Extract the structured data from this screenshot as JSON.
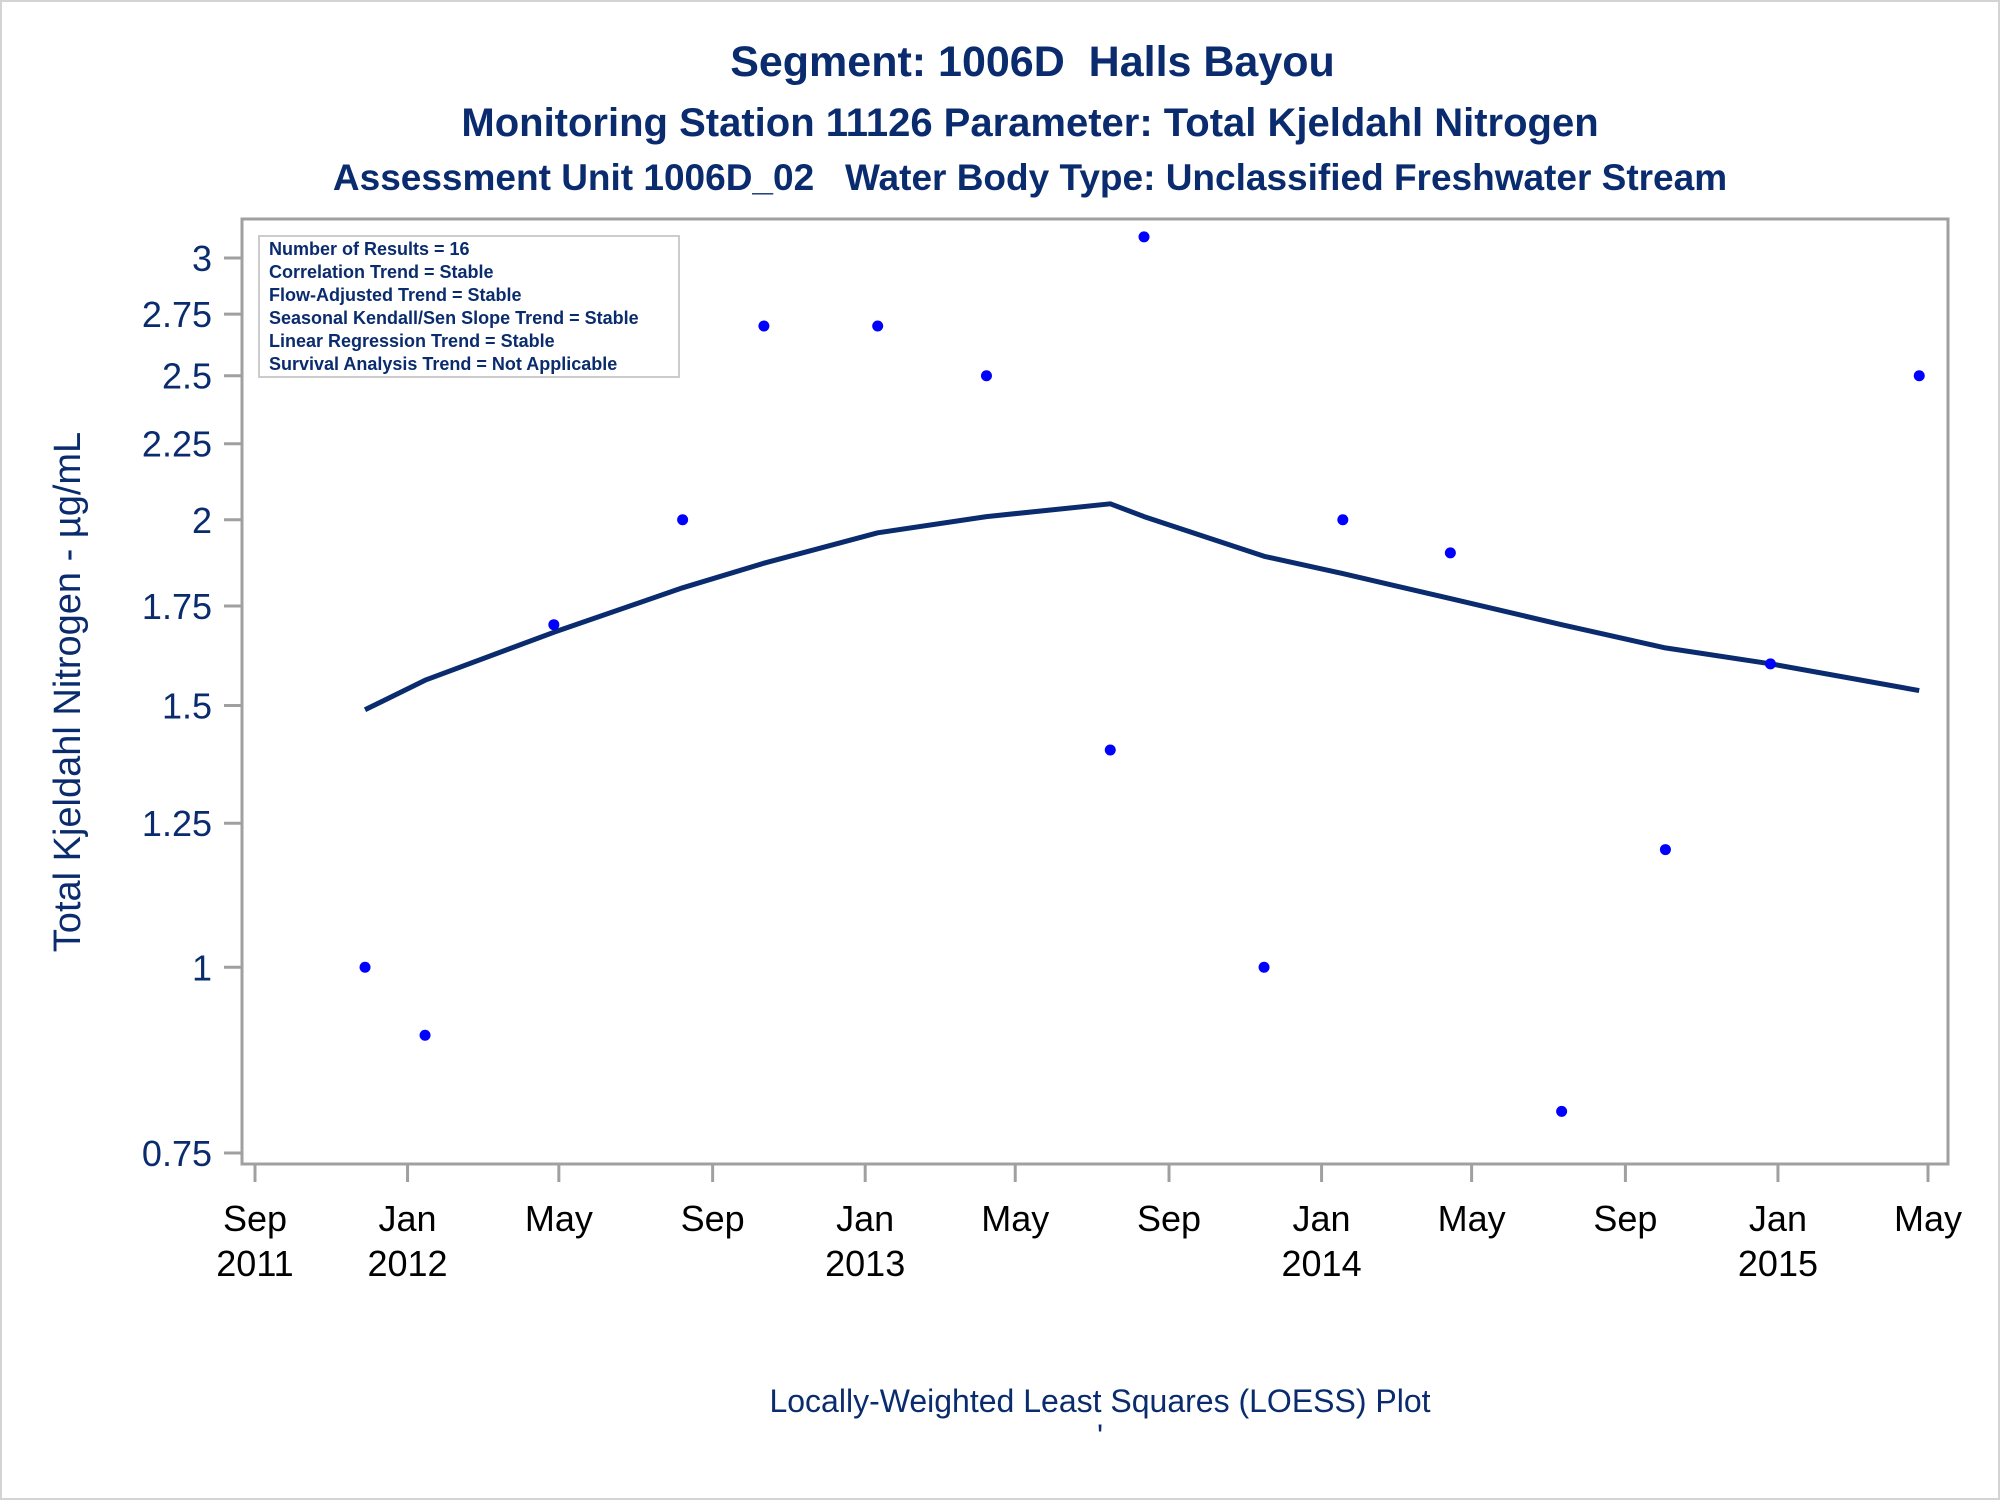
{
  "titles": {
    "line1": "Segment: 1006D  Halls Bayou",
    "line2": "Monitoring Station 11126 Parameter: Total Kjeldahl Nitrogen",
    "line3": "Assessment Unit 1006D_02   Water Body Type: Unclassified Freshwater Stream"
  },
  "stats_box": [
    "Number of Results = 16",
    "Correlation Trend = Stable",
    "Flow-Adjusted Trend = Stable",
    "Seasonal Kendall/Sen Slope Trend = Stable",
    "Linear Regression Trend = Stable",
    "Survival Analysis Trend = Not Applicable"
  ],
  "footnote": "Locally-Weighted Least Squares (LOESS) Plot",
  "footnote_mark": "'",
  "colors": {
    "text": "#0a2c6e",
    "points": "#0000ff",
    "loess_line": "#0a2c6e",
    "frame": "#a0a0a0"
  },
  "chart_data": {
    "type": "scatter",
    "ylabel": "Total Kjeldahl Nitrogen -  µg/mL",
    "xlabel": "",
    "y_scale": "log",
    "ylim": [
      0.735,
      3.1
    ],
    "y_ticks": [
      0.75,
      1,
      1.25,
      1.5,
      1.75,
      2,
      2.25,
      2.5,
      2.75,
      3
    ],
    "y_tick_labels": [
      "0.75",
      "1",
      "1.25",
      "1.5",
      "1.75",
      "2",
      "2.25",
      "2.5",
      "2.75",
      "3"
    ],
    "xlim": [
      "2011-09-01",
      "2015-05-01"
    ],
    "x_ticks": [
      {
        "date": "2011-09-01",
        "month": "Sep",
        "year": "2011"
      },
      {
        "date": "2012-01-01",
        "month": "Jan",
        "year": "2012"
      },
      {
        "date": "2012-05-01",
        "month": "May",
        "year": ""
      },
      {
        "date": "2012-09-01",
        "month": "Sep",
        "year": ""
      },
      {
        "date": "2013-01-01",
        "month": "Jan",
        "year": "2013"
      },
      {
        "date": "2013-05-01",
        "month": "May",
        "year": ""
      },
      {
        "date": "2013-09-01",
        "month": "Sep",
        "year": ""
      },
      {
        "date": "2014-01-01",
        "month": "Jan",
        "year": "2014"
      },
      {
        "date": "2014-05-01",
        "month": "May",
        "year": ""
      },
      {
        "date": "2014-09-01",
        "month": "Sep",
        "year": ""
      },
      {
        "date": "2015-01-01",
        "month": "Jan",
        "year": "2015"
      },
      {
        "date": "2015-05-01",
        "month": "May",
        "year": ""
      }
    ],
    "grid": false,
    "series": [
      {
        "points": [
          {
            "x": "2011-11-28",
            "y": 1.0
          },
          {
            "x": "2012-01-15",
            "y": 0.9
          },
          {
            "x": "2012-04-27",
            "y": 1.7
          },
          {
            "x": "2012-08-08",
            "y": 2.0
          },
          {
            "x": "2012-10-12",
            "y": 2.7
          },
          {
            "x": "2013-01-11",
            "y": 2.7
          },
          {
            "x": "2013-04-08",
            "y": 2.5
          },
          {
            "x": "2013-07-16",
            "y": 1.4
          },
          {
            "x": "2013-08-12",
            "y": 3.1
          },
          {
            "x": "2013-11-16",
            "y": 1.0
          },
          {
            "x": "2014-01-18",
            "y": 2.0
          },
          {
            "x": "2014-04-14",
            "y": 1.9
          },
          {
            "x": "2014-07-12",
            "y": 0.8
          },
          {
            "x": "2014-10-03",
            "y": 1.2
          },
          {
            "x": "2014-12-26",
            "y": 1.6
          },
          {
            "x": "2015-04-24",
            "y": 2.5
          }
        ]
      }
    ],
    "loess_curve": [
      {
        "x": "2011-11-28",
        "y": 1.49
      },
      {
        "x": "2012-01-15",
        "y": 1.56
      },
      {
        "x": "2012-04-27",
        "y": 1.68
      },
      {
        "x": "2012-08-08",
        "y": 1.8
      },
      {
        "x": "2012-10-12",
        "y": 1.87
      },
      {
        "x": "2013-01-11",
        "y": 1.96
      },
      {
        "x": "2013-04-08",
        "y": 2.01
      },
      {
        "x": "2013-07-16",
        "y": 2.05
      },
      {
        "x": "2013-08-12",
        "y": 2.01
      },
      {
        "x": "2013-11-16",
        "y": 1.89
      },
      {
        "x": "2014-01-18",
        "y": 1.84
      },
      {
        "x": "2014-04-14",
        "y": 1.77
      },
      {
        "x": "2014-07-12",
        "y": 1.7
      },
      {
        "x": "2014-10-03",
        "y": 1.64
      },
      {
        "x": "2014-12-26",
        "y": 1.6
      },
      {
        "x": "2015-04-24",
        "y": 1.535
      }
    ]
  }
}
